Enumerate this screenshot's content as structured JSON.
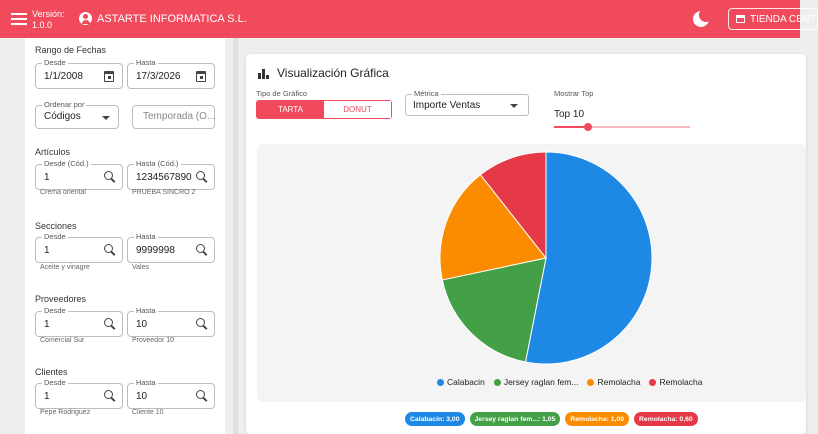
{
  "header": {
    "version_label": "Versión:",
    "version_value": "1.0.0",
    "company": "ASTARTE INFORMATICA S.L.",
    "store_button": "TIENDA CENT",
    "icons": [
      "menu-icon",
      "account-icon",
      "moon-icon",
      "store-icon"
    ]
  },
  "filters": {
    "date_range": {
      "title": "Rango de Fechas",
      "from_label": "Desde",
      "from_value": "1/1/2008",
      "to_label": "Hasta",
      "to_value": "17/3/2026"
    },
    "order": {
      "label": "Ordenar por",
      "value": "Códigos",
      "season_placeholder": "Temporada (O..."
    },
    "articles": {
      "title": "Artículos",
      "from_label": "Desde (Cód.)",
      "from_value": "1",
      "from_helper": "Crema oriental",
      "to_label": "Hasta (Cód.)",
      "to_value": "1234567890",
      "to_helper": "PRUEBA SINCRO 2"
    },
    "sections": {
      "title": "Secciones",
      "from_label": "Desde",
      "from_value": "1",
      "from_helper": "Aceite y vinagre",
      "to_label": "Hasta",
      "to_value": "9999998",
      "to_helper": "Vales"
    },
    "suppliers": {
      "title": "Proveedores",
      "from_label": "Desde",
      "from_value": "1",
      "from_helper": "Comercial Sur",
      "to_label": "Hasta",
      "to_value": "10",
      "to_helper": "Proveedor 10"
    },
    "clients": {
      "title": "Clientes",
      "from_label": "Desde",
      "from_value": "1",
      "from_helper": "Pepe Rodriguez",
      "to_label": "Hasta",
      "to_value": "10",
      "to_helper": "Cliente 10"
    }
  },
  "chart_panel": {
    "title": "Visualización Gráfica",
    "chart_type_label": "Tipo de Gráfico",
    "chart_type_options": [
      "TARTA",
      "DONUT"
    ],
    "chart_type_selected": "TARTA",
    "metric_label": "Métrica",
    "metric_value": "Importe Ventas",
    "top_label": "Mostrar Top",
    "top_value": "Top 10",
    "top_slider_fraction": 0.25,
    "chips": [
      "Calabacin: 3,00",
      "Jersey raglan fem...: 1,05",
      "Remolacha: 1,00",
      "Remolacha: 0,60"
    ]
  },
  "colors": {
    "accent": "#f04a5c",
    "series": [
      "#1e88e5",
      "#43a047",
      "#fb8c00",
      "#e53947"
    ]
  },
  "chart_data": {
    "type": "pie",
    "categories": [
      "Calabacin",
      "Jersey raglan fem...",
      "Remolacha",
      "Remolacha"
    ],
    "values": [
      3.0,
      1.05,
      1.0,
      0.6
    ],
    "legend_position": "bottom"
  }
}
